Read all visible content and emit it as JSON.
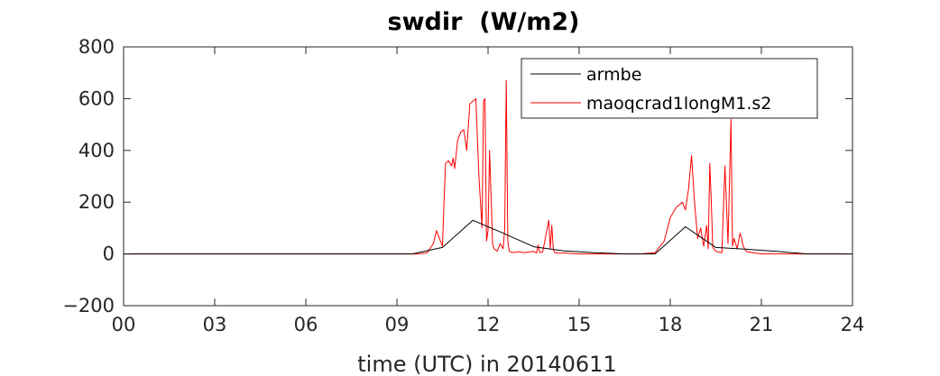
{
  "chart_data": {
    "type": "line",
    "title": "swdir  (W/m2)",
    "xlabel": "time (UTC) in 20140611",
    "ylabel": "",
    "xlim": [
      0,
      24
    ],
    "ylim": [
      -200,
      800
    ],
    "x_ticks": [
      0,
      3,
      6,
      9,
      12,
      15,
      18,
      21,
      24
    ],
    "x_tick_labels": [
      "00",
      "03",
      "06",
      "09",
      "12",
      "15",
      "18",
      "21",
      "24"
    ],
    "y_ticks": [
      -200,
      0,
      200,
      400,
      600,
      800
    ],
    "y_tick_labels": [
      "−200",
      "0",
      "200",
      "400",
      "600",
      "800"
    ],
    "grid": false,
    "legend_position": "top-right",
    "colors": {
      "armbe": "#000000",
      "maoqcrad1longM1.s2": "#ff0000"
    },
    "series": [
      {
        "name": "armbe",
        "color": "#000000",
        "x": [
          0,
          9.5,
          10.5,
          11.5,
          12.5,
          13.5,
          14.5,
          15.5,
          16.5,
          17.5,
          18.5,
          19.5,
          20.5,
          21.5,
          22.5,
          24
        ],
        "y": [
          0,
          0,
          25,
          130,
          80,
          28,
          12,
          5,
          0,
          0,
          105,
          25,
          18,
          10,
          0,
          0
        ]
      },
      {
        "name": "maoqcrad1longM1.s2",
        "color": "#ff0000",
        "x": [
          0,
          9.7,
          10.0,
          10.2,
          10.3,
          10.4,
          10.5,
          10.55,
          10.6,
          10.7,
          10.8,
          10.85,
          10.9,
          11.0,
          11.1,
          11.2,
          11.3,
          11.4,
          11.5,
          11.6,
          11.7,
          11.8,
          11.85,
          11.9,
          11.95,
          12.0,
          12.05,
          12.1,
          12.15,
          12.2,
          12.3,
          12.4,
          12.5,
          12.55,
          12.6,
          12.65,
          12.7,
          12.8,
          13.0,
          13.2,
          13.5,
          13.6,
          13.65,
          13.7,
          13.8,
          14.0,
          14.05,
          14.1,
          14.15,
          14.2,
          14.3,
          14.6,
          15.0,
          16.0,
          17.0,
          17.5,
          17.8,
          18.0,
          18.2,
          18.4,
          18.5,
          18.6,
          18.7,
          18.8,
          18.9,
          19.0,
          19.1,
          19.2,
          19.25,
          19.3,
          19.35,
          19.4,
          19.5,
          19.7,
          19.8,
          19.9,
          20.0,
          20.05,
          20.1,
          20.2,
          20.3,
          20.35,
          20.4,
          20.5,
          20.7,
          21.0,
          22.0,
          24.0
        ],
        "y": [
          0,
          0,
          5,
          40,
          90,
          60,
          30,
          200,
          350,
          360,
          340,
          370,
          330,
          440,
          470,
          480,
          400,
          580,
          590,
          600,
          300,
          100,
          590,
          600,
          50,
          90,
          400,
          220,
          40,
          20,
          10,
          40,
          20,
          100,
          670,
          50,
          10,
          5,
          8,
          5,
          10,
          3,
          35,
          5,
          8,
          130,
          20,
          110,
          15,
          5,
          3,
          3,
          0,
          0,
          0,
          5,
          50,
          140,
          180,
          200,
          170,
          250,
          380,
          200,
          60,
          100,
          30,
          110,
          20,
          350,
          200,
          25,
          10,
          5,
          340,
          40,
          520,
          30,
          60,
          20,
          80,
          60,
          30,
          10,
          5,
          0,
          0,
          0
        ]
      }
    ]
  }
}
